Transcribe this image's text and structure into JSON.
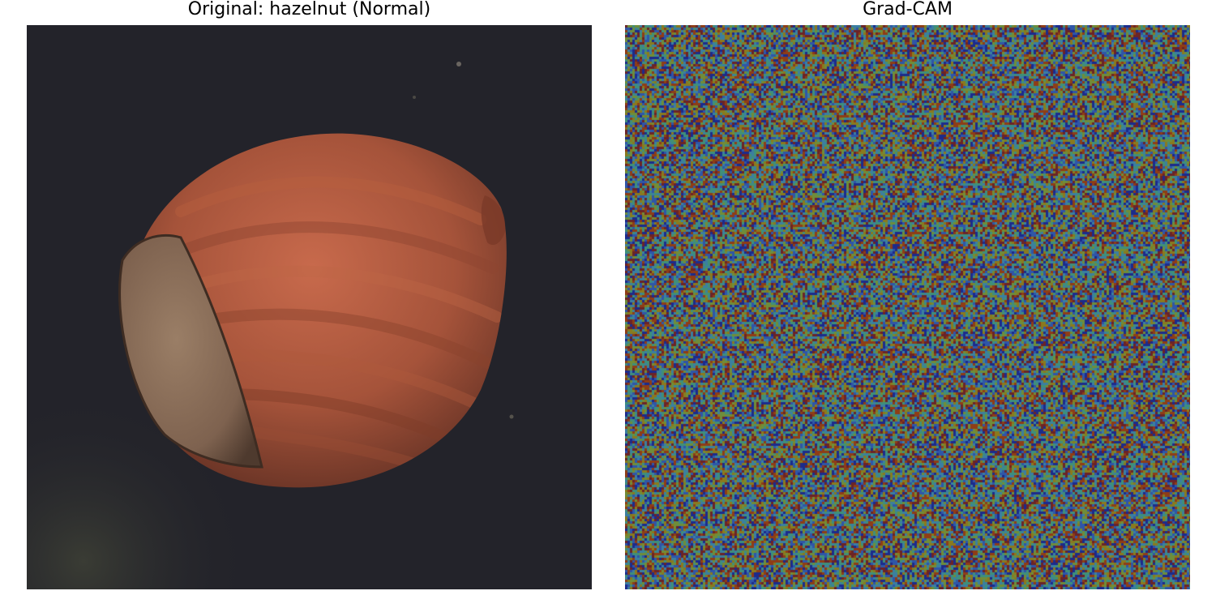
{
  "figure": {
    "left_title": "Original: hazelnut (Normal)",
    "right_title": "Grad-CAM"
  },
  "left_panel": {
    "subject": "hazelnut",
    "background_color": "#23232a",
    "shell_color": "#a5533a",
    "shell_highlight_color": "#c86a4c",
    "shell_shadow_color": "#5e2e22",
    "cap_color": "#8e725c"
  },
  "right_panel": {
    "overlay": "gradcam-heatmap",
    "colormap": "jet",
    "pattern": "noise",
    "palette": [
      "#1c2b8c",
      "#2f56a8",
      "#3b7fa0",
      "#3f8f7a",
      "#6f8d3a",
      "#8a7a1e",
      "#8f3d16",
      "#6b2427"
    ]
  }
}
